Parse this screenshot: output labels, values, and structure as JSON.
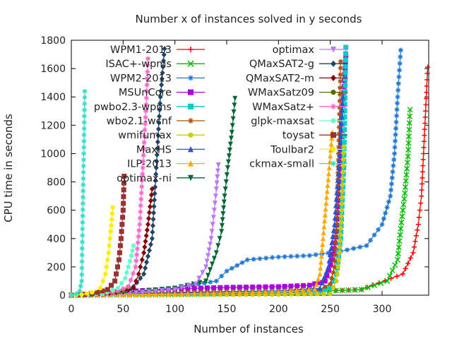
{
  "chart_data": {
    "type": "scatter",
    "title": "Number x of instances solved in y seconds",
    "xlabel": "Number of instances",
    "ylabel": "CPU time in seconds",
    "xlim": [
      0,
      345
    ],
    "ylim": [
      0,
      1800
    ],
    "x_ticks": [
      0,
      50,
      100,
      150,
      200,
      250,
      300
    ],
    "y_ticks": [
      0,
      200,
      400,
      600,
      800,
      1000,
      1200,
      1400,
      1600,
      1800
    ],
    "grid": false,
    "legend_placement": "top, two columns",
    "series": [
      {
        "name": "WPM1-2013",
        "color": "#ff0000",
        "marker": "plus",
        "x": [
          0,
          100,
          200,
          280,
          320,
          330,
          335,
          338,
          340,
          342,
          344
        ],
        "y": [
          0,
          5,
          15,
          40,
          150,
          300,
          500,
          700,
          1000,
          1300,
          1610
        ]
      },
      {
        "name": "ISAC+-wpms",
        "color": "#00bb00",
        "marker": "cross",
        "x": [
          0,
          100,
          200,
          280,
          305,
          315,
          318,
          320,
          322,
          325,
          327
        ],
        "y": [
          0,
          5,
          15,
          40,
          100,
          250,
          470,
          600,
          720,
          980,
          1310
        ]
      },
      {
        "name": "WPM2-2013",
        "color": "#1f77d4",
        "marker": "star",
        "x": [
          0,
          50,
          100,
          140,
          150,
          170,
          200,
          230,
          260,
          285,
          300,
          308,
          312,
          315,
          318
        ],
        "y": [
          0,
          20,
          50,
          100,
          170,
          250,
          270,
          280,
          310,
          350,
          500,
          700,
          1000,
          1400,
          1730
        ]
      },
      {
        "name": "MSUnCore",
        "color": "#aa00dd",
        "marker": "square",
        "x": [
          0,
          50,
          100,
          150,
          200,
          230,
          245,
          252,
          256,
          259,
          262,
          265
        ],
        "y": [
          0,
          25,
          45,
          55,
          60,
          70,
          100,
          250,
          450,
          800,
          1300,
          1690
        ]
      },
      {
        "name": "pwbo2.3-wpms",
        "color": "#00cccc",
        "marker": "square",
        "x": [
          0,
          100,
          200,
          240,
          250,
          256,
          260,
          263,
          265
        ],
        "y": [
          0,
          10,
          20,
          30,
          50,
          150,
          400,
          900,
          1750
        ]
      },
      {
        "name": "wbo2.1-wcnf",
        "color": "#b24d00",
        "marker": "star",
        "x": [
          0,
          100,
          200,
          240,
          250,
          254,
          256,
          258,
          260
        ],
        "y": [
          0,
          20,
          30,
          40,
          80,
          200,
          500,
          1000,
          1650
        ]
      },
      {
        "name": "wmifumax",
        "color": "#cccc00",
        "marker": "dot",
        "x": [
          0,
          100,
          200,
          250,
          256,
          259,
          261,
          263
        ],
        "y": [
          0,
          3,
          5,
          10,
          100,
          300,
          600,
          1050
        ]
      },
      {
        "name": "MaxHS",
        "color": "#2a55cc",
        "marker": "triangle",
        "x": [
          0,
          100,
          200,
          240,
          248,
          254,
          258,
          262
        ],
        "y": [
          0,
          15,
          30,
          50,
          200,
          500,
          900,
          1400
        ]
      },
      {
        "name": "ILP-2013",
        "color": "#ffaa00",
        "marker": "triangle",
        "x": [
          0,
          100,
          200,
          235,
          240,
          243,
          246,
          249,
          252
        ],
        "y": [
          0,
          10,
          25,
          40,
          150,
          400,
          650,
          900,
          1150
        ]
      },
      {
        "name": "optimax-ni",
        "color": "#006633",
        "marker": "triangle-down",
        "x": [
          0,
          50,
          100,
          130,
          140,
          145,
          148,
          151,
          155,
          158
        ],
        "y": [
          0,
          15,
          50,
          100,
          300,
          450,
          700,
          900,
          1150,
          1390
        ]
      },
      {
        "name": "optimax",
        "color": "#bb77ff",
        "marker": "triangle-down",
        "x": [
          0,
          50,
          100,
          120,
          130,
          135,
          138,
          140,
          142
        ],
        "y": [
          0,
          10,
          40,
          80,
          200,
          400,
          600,
          750,
          920
        ]
      },
      {
        "name": "QMaxSAT2-g",
        "color": "#224466",
        "marker": "diamond",
        "x": [
          0,
          30,
          50,
          60,
          70,
          78,
          82,
          86,
          90
        ],
        "y": [
          0,
          10,
          30,
          60,
          150,
          400,
          900,
          1400,
          1740
        ]
      },
      {
        "name": "QMaxSAT2-m",
        "color": "#880000",
        "marker": "diamond",
        "x": [
          0,
          30,
          50,
          60,
          65,
          70,
          74,
          78
        ],
        "y": [
          0,
          10,
          25,
          50,
          150,
          300,
          500,
          750
        ]
      },
      {
        "name": "WMaxSatz09",
        "color": "#556b00",
        "marker": "dot",
        "x": [
          0,
          20,
          40,
          50,
          55
        ],
        "y": [
          0,
          5,
          15,
          30,
          60
        ]
      },
      {
        "name": "WMaxSatz+",
        "color": "#ff66cc",
        "marker": "star",
        "x": [
          0,
          40,
          55,
          62,
          66,
          69,
          72,
          74
        ],
        "y": [
          0,
          20,
          60,
          200,
          500,
          900,
          1300,
          1670
        ]
      },
      {
        "name": "glpk-maxsat",
        "color": "#66ffcc",
        "marker": "dot",
        "x": [
          0,
          30,
          45,
          52,
          55,
          58,
          60
        ],
        "y": [
          0,
          10,
          50,
          120,
          200,
          280,
          350
        ]
      },
      {
        "name": "toysat",
        "color": "#993333",
        "marker": "square",
        "x": [
          0,
          20,
          35,
          42,
          46,
          48,
          50,
          51
        ],
        "y": [
          0,
          10,
          40,
          100,
          250,
          400,
          600,
          840
        ]
      },
      {
        "name": "Toulbar2",
        "color": "#ffee00",
        "marker": "dot",
        "x": [
          0,
          10,
          20,
          28,
          33,
          36,
          38,
          40
        ],
        "y": [
          0,
          5,
          20,
          50,
          150,
          300,
          450,
          620
        ]
      },
      {
        "name": "ckmax-small",
        "color": "#33ddcc",
        "marker": "star",
        "x": [
          0,
          5,
          8,
          10,
          11,
          12,
          13
        ],
        "y": [
          0,
          10,
          30,
          100,
          560,
          1000,
          1440
        ]
      }
    ]
  }
}
